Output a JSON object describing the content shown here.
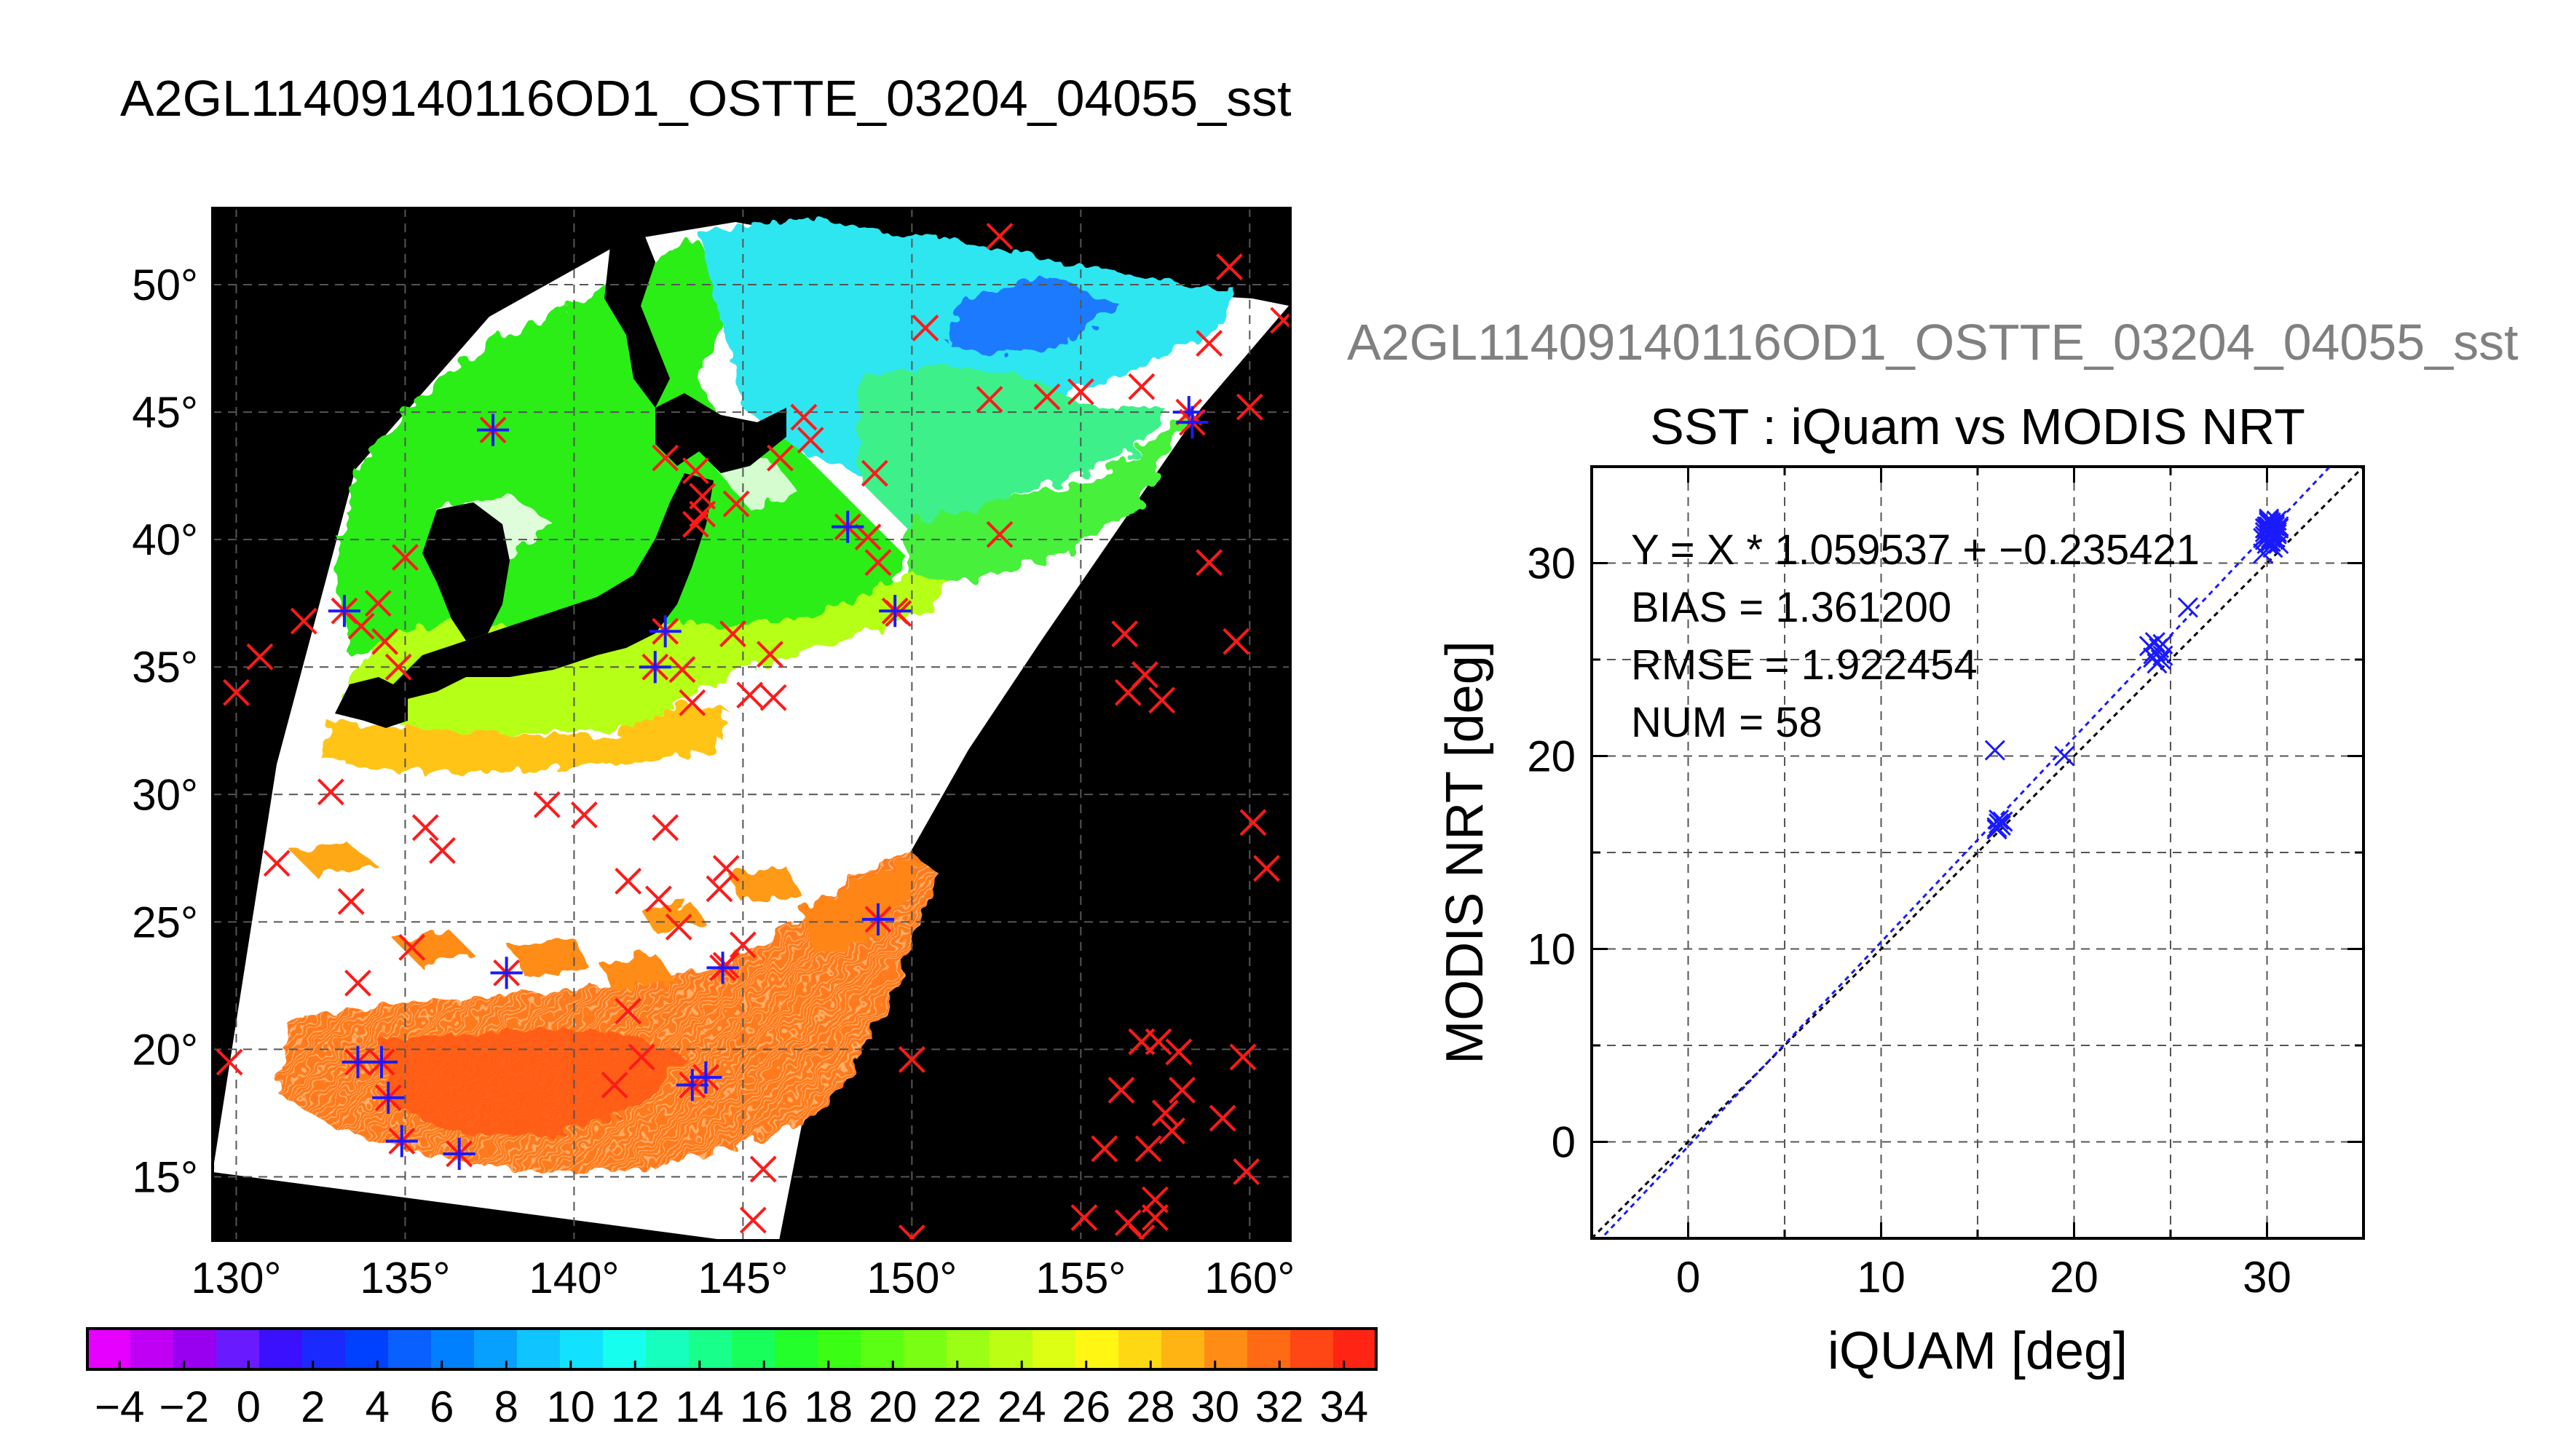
{
  "title": "A2GL11409140116OD1_OSTTE_03204_04055_sst",
  "colors": {
    "over_land": "#000000",
    "no_data": "#ffffff",
    "insitu": "#ff1a1a",
    "matched": "#1a1aff",
    "grid": "#555555"
  },
  "chart_data": [
    {
      "type": "map",
      "title": "A2GL11409140116OD1_OSTTE_03204_04055_sst",
      "x_tick_labels": [
        "130°",
        "135°",
        "140°",
        "145°",
        "150°",
        "155°",
        "160°"
      ],
      "y_tick_labels": [
        "15°",
        "20°",
        "25°",
        "30°",
        "35°",
        "40°",
        "45°",
        "50°"
      ],
      "lon_range": [
        129.3,
        161.2
      ],
      "lat_range": [
        12.5,
        53.0
      ],
      "series": [
        {
          "marker": "x",
          "points": [
            [
              152.6,
              51.9
            ],
            [
              159.4,
              50.7
            ],
            [
              161.0,
              48.6
            ],
            [
              158.8,
              47.7
            ],
            [
              154.0,
              45.6
            ],
            [
              155.0,
              45.8
            ],
            [
              156.8,
              46.0
            ],
            [
              160.0,
              45.2
            ],
            [
              150.4,
              48.3
            ],
            [
              152.3,
              45.5
            ],
            [
              146.8,
              44.8
            ],
            [
              147.0,
              43.9
            ],
            [
              146.1,
              43.2
            ],
            [
              142.7,
              43.2
            ],
            [
              143.6,
              42.7
            ],
            [
              144.8,
              41.4
            ],
            [
              143.8,
              41.7
            ],
            [
              143.8,
              41.0
            ],
            [
              143.6,
              40.6
            ],
            [
              148.9,
              42.6
            ],
            [
              148.7,
              40.1
            ],
            [
              149.0,
              39.1
            ],
            [
              149.6,
              37.1
            ],
            [
              152.6,
              40.2
            ],
            [
              158.8,
              39.1
            ],
            [
              135.0,
              39.3
            ],
            [
              134.2,
              37.5
            ],
            [
              133.7,
              36.6
            ],
            [
              134.4,
              36.0
            ],
            [
              134.8,
              35.0
            ],
            [
              132.0,
              36.8
            ],
            [
              130.7,
              35.4
            ],
            [
              130.0,
              34.0
            ],
            [
              145.8,
              35.5
            ],
            [
              145.2,
              33.9
            ],
            [
              145.9,
              33.8
            ],
            [
              144.7,
              36.3
            ],
            [
              143.2,
              34.9
            ],
            [
              143.5,
              33.6
            ],
            [
              139.2,
              29.6
            ],
            [
              140.3,
              29.2
            ],
            [
              142.7,
              28.7
            ],
            [
              144.5,
              27.1
            ],
            [
              144.3,
              26.3
            ],
            [
              141.6,
              26.6
            ],
            [
              142.5,
              25.9
            ],
            [
              143.1,
              24.8
            ],
            [
              145.0,
              24.1
            ],
            [
              144.5,
              23.3
            ],
            [
              135.6,
              28.7
            ],
            [
              132.8,
              30.1
            ],
            [
              131.2,
              27.3
            ],
            [
              133.4,
              25.8
            ],
            [
              136.1,
              27.8
            ],
            [
              135.2,
              24.0
            ],
            [
              133.6,
              22.6
            ],
            [
              141.6,
              21.5
            ],
            [
              142.0,
              19.7
            ],
            [
              141.2,
              18.6
            ],
            [
              145.6,
              15.3
            ],
            [
              145.3,
              13.3
            ],
            [
              150.0,
              19.6
            ],
            [
              150.0,
              12.6
            ],
            [
              156.3,
              36.3
            ],
            [
              156.4,
              34.0
            ],
            [
              156.9,
              34.7
            ],
            [
              157.4,
              33.7
            ],
            [
              159.6,
              36.0
            ],
            [
              160.1,
              28.9
            ],
            [
              160.5,
              27.1
            ],
            [
              157.3,
              20.3
            ],
            [
              156.8,
              20.3
            ],
            [
              157.9,
              19.9
            ],
            [
              159.8,
              19.7
            ],
            [
              156.2,
              18.4
            ],
            [
              158.0,
              18.4
            ],
            [
              157.5,
              17.5
            ],
            [
              157.7,
              16.8
            ],
            [
              159.2,
              17.3
            ],
            [
              157.0,
              16.1
            ],
            [
              159.9,
              15.2
            ],
            [
              155.7,
              16.1
            ],
            [
              155.1,
              13.4
            ],
            [
              156.4,
              13.2
            ],
            [
              156.8,
              12.6
            ],
            [
              157.2,
              14.1
            ],
            [
              157.2,
              13.4
            ],
            [
              129.8,
              19.5
            ]
          ]
        },
        {
          "marker": "*",
          "points": [
            [
              137.6,
              44.3
            ],
            [
              133.2,
              37.2
            ],
            [
              142.4,
              35.0
            ],
            [
              142.7,
              36.4
            ],
            [
              148.1,
              40.5
            ],
            [
              149.5,
              37.2
            ],
            [
              158.2,
              45.0
            ],
            [
              158.3,
              44.6
            ],
            [
              149.0,
              25.1
            ],
            [
              138.0,
              23.0
            ],
            [
              144.4,
              23.2
            ],
            [
              133.6,
              19.5
            ],
            [
              134.3,
              19.5
            ],
            [
              134.5,
              18.1
            ],
            [
              134.9,
              16.4
            ],
            [
              136.6,
              15.9
            ],
            [
              143.5,
              18.6
            ],
            [
              143.9,
              18.9
            ]
          ]
        }
      ]
    },
    {
      "type": "scatter",
      "title": "SST : iQuam vs MODIS NRT",
      "xlabel": "iQUAM [deg]",
      "ylabel": "MODIS NRT [deg]",
      "xlim": [
        -5,
        35
      ],
      "ylim": [
        -5,
        35
      ],
      "x_ticks": [
        0,
        10,
        20,
        30
      ],
      "y_ticks": [
        0,
        10,
        20,
        30
      ],
      "annotations": [
        "Y = X * 1.059537 + −0.235421",
        "BIAS = 1.361200",
        "RMSE = 1.922454",
        "NUM = 58"
      ],
      "fit": {
        "slope": 1.059537,
        "intercept": -0.235421
      },
      "x": [
        15.9,
        16.0,
        16.1,
        16.2,
        16.3,
        16.1,
        16.0,
        19.5,
        23.9,
        24.1,
        24.2,
        24.4,
        24.6,
        24.3,
        24.5,
        24.2,
        24.6,
        25.9,
        29.8,
        29.9,
        30.0,
        30.1,
        30.2,
        30.3,
        30.4,
        30.5,
        30.6,
        29.9,
        30.1,
        30.3,
        30.5,
        30.2,
        30.0,
        30.4,
        29.8,
        30.6,
        30.2,
        30.1,
        30.3,
        30.0,
        29.9,
        30.1,
        30.2,
        30.4,
        30.5,
        30.0,
        30.3,
        30.2,
        30.1,
        29.9,
        30.6,
        30.4,
        30.2,
        30.0,
        30.1,
        30.3,
        30.2,
        30.0
      ],
      "y": [
        20.3,
        16.3,
        16.5,
        16.4,
        16.6,
        16.7,
        16.2,
        20.0,
        25.7,
        25.1,
        25.4,
        25.6,
        25.2,
        24.8,
        25.0,
        25.9,
        25.8,
        27.7,
        31.3,
        31.6,
        31.8,
        31.5,
        32.0,
        31.7,
        31.9,
        32.2,
        31.9,
        31.2,
        32.3,
        31.4,
        31.6,
        32.1,
        31.9,
        31.3,
        30.5,
        31.8,
        30.9,
        31.1,
        32.0,
        31.5,
        31.8,
        31.9,
        31.6,
        31.2,
        31.5,
        31.0,
        30.8,
        31.7,
        32.1,
        31.4,
        31.0,
        32.0,
        31.3,
        31.8,
        32.2,
        31.6,
        31.1,
        31.9
      ]
    },
    {
      "type": "colorbar",
      "tick_labels": [
        "−4",
        "−2",
        "0",
        "2",
        "4",
        "6",
        "8",
        "10",
        "12",
        "14",
        "16",
        "18",
        "20",
        "22",
        "24",
        "26",
        "28",
        "30",
        "32",
        "34"
      ],
      "range": [
        -5,
        35
      ],
      "colors": [
        "#e600ff",
        "#c000f5",
        "#9a00f0",
        "#6a1aff",
        "#3a10ff",
        "#1a2aff",
        "#0040ff",
        "#0a60ff",
        "#0080ff",
        "#08a0ff",
        "#10c4ff",
        "#12e2ff",
        "#16ffee",
        "#16ffbe",
        "#18ff8c",
        "#18ff5c",
        "#22ff2a",
        "#3aff14",
        "#5aff14",
        "#7aff14",
        "#9aff14",
        "#bcff14",
        "#dcff14",
        "#fff614",
        "#ffd814",
        "#ffb414",
        "#ff8c14",
        "#ff6a14",
        "#ff4614",
        "#ff2414"
      ]
    }
  ]
}
